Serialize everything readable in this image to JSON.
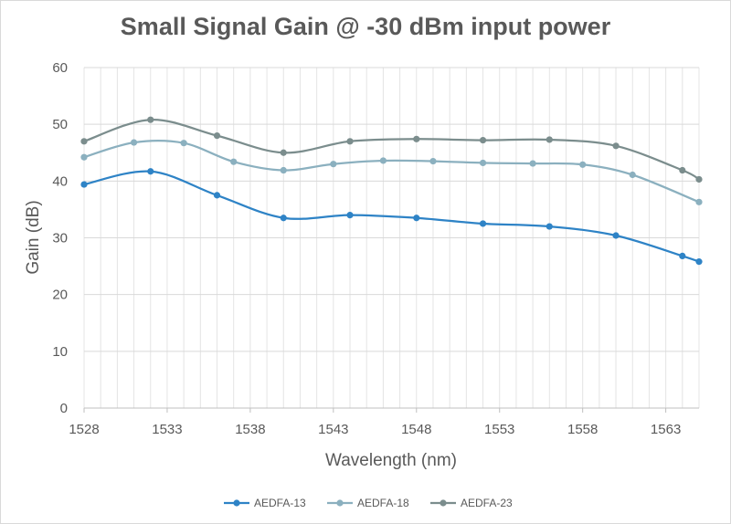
{
  "chart_data": {
    "type": "line",
    "title": "Small Signal Gain @ -30 dBm input power",
    "xlabel": "Wavelength (nm)",
    "ylabel": "Gain (dB)",
    "xlim": [
      1528,
      1565
    ],
    "ylim": [
      0,
      60
    ],
    "x_ticks": [
      1528,
      1533,
      1538,
      1543,
      1548,
      1553,
      1558,
      1563
    ],
    "y_ticks": [
      0,
      10,
      20,
      30,
      40,
      50,
      60
    ],
    "grid": "vertical minor lines every 1 nm, horizontal major lines every 10 dB",
    "legend": "bottom",
    "series": [
      {
        "name": "AEDFA-13",
        "color": "#2e83c6",
        "x": [
          1528,
          1532,
          1536,
          1540,
          1544,
          1548,
          1552,
          1556,
          1560,
          1564,
          1565
        ],
        "y": [
          39.4,
          41.7,
          37.5,
          33.5,
          34.0,
          33.5,
          32.5,
          32.0,
          30.4,
          26.8,
          25.8
        ]
      },
      {
        "name": "AEDFA-18",
        "color": "#8bb0bf",
        "x": [
          1528,
          1531,
          1534,
          1537,
          1540,
          1543,
          1546,
          1549,
          1552,
          1555,
          1558,
          1561,
          1565
        ],
        "y": [
          44.2,
          46.8,
          46.7,
          43.4,
          41.9,
          43.0,
          43.6,
          43.5,
          43.2,
          43.1,
          42.9,
          41.1,
          36.3
        ]
      },
      {
        "name": "AEDFA-23",
        "color": "#7b8d8d",
        "x": [
          1528,
          1532,
          1536,
          1540,
          1544,
          1548,
          1552,
          1556,
          1560,
          1564,
          1565
        ],
        "y": [
          47.0,
          50.8,
          48.0,
          45.0,
          47.0,
          47.4,
          47.2,
          47.3,
          46.2,
          41.9,
          40.3
        ]
      }
    ]
  }
}
